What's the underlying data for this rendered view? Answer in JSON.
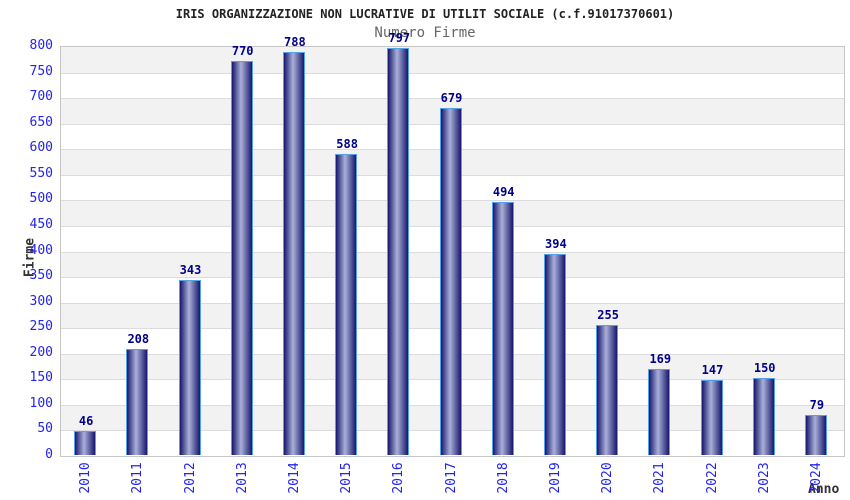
{
  "chart_data": {
    "type": "bar",
    "title": "IRIS ORGANIZZAZIONE NON LUCRATIVE DI UTILIT SOCIALE (c.f.91017370601)",
    "subtitle": "Numero Firme",
    "xlabel": "Anno",
    "ylabel": "Firme",
    "categories": [
      "2010",
      "2011",
      "2012",
      "2013",
      "2014",
      "2015",
      "2016",
      "2017",
      "2018",
      "2019",
      "2020",
      "2021",
      "2022",
      "2023",
      "2024"
    ],
    "values": [
      46,
      208,
      343,
      770,
      788,
      588,
      797,
      679,
      494,
      394,
      255,
      169,
      147,
      150,
      79
    ],
    "ylim": [
      0,
      800
    ],
    "ytick_step": 50,
    "grid": true,
    "legend": "none",
    "colors": {
      "bar_edge_dark": "#17176e",
      "bar_center_light": "#aab0d8",
      "bar_border": "#54a1e8",
      "tick_label_blue": "#2323ee",
      "value_label_navy": "#00008b",
      "band_gray": "#f2f2f2",
      "band_white": "#ffffff",
      "gridline_gray": "#dcdcdc",
      "title_color": "#222222",
      "subtitle_color": "#666666",
      "axis_title_color": "#333333"
    }
  }
}
